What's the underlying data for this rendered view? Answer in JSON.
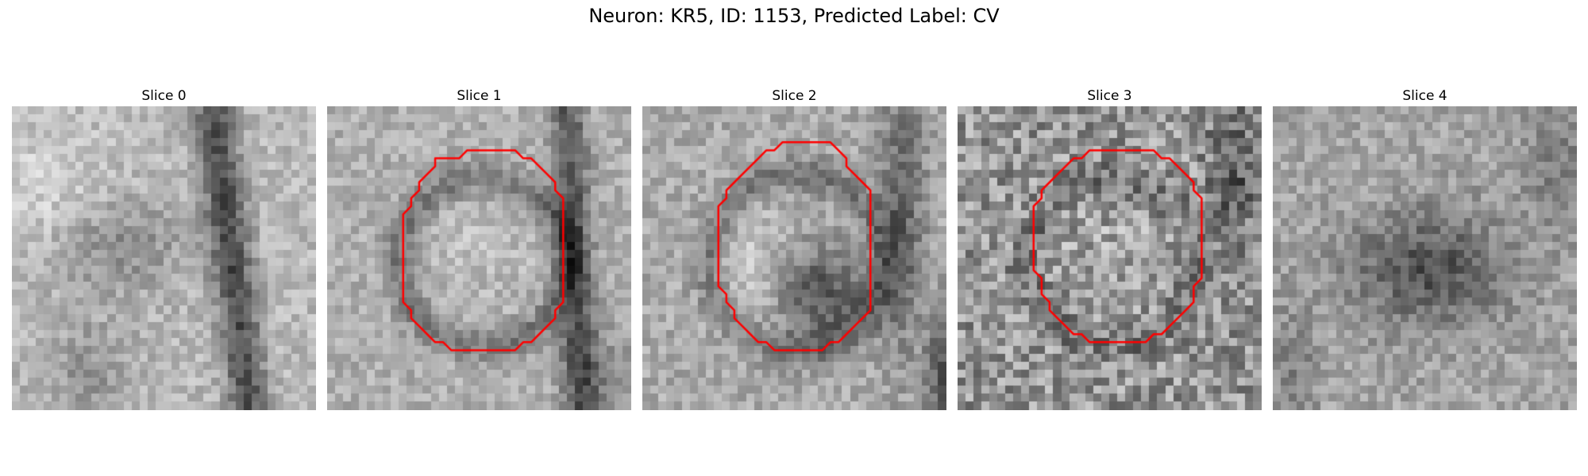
{
  "figure": {
    "title": "Neuron: KR5, ID: 1153, Predicted Label: CV"
  },
  "contour_color": "#ff0000",
  "colormap": "gray",
  "slices": [
    {
      "title": "Slice 0",
      "has_contour": false
    },
    {
      "title": "Slice 1",
      "has_contour": true
    },
    {
      "title": "Slice 2",
      "has_contour": true
    },
    {
      "title": "Slice 3",
      "has_contour": true
    },
    {
      "title": "Slice 4",
      "has_contour": false
    }
  ]
}
